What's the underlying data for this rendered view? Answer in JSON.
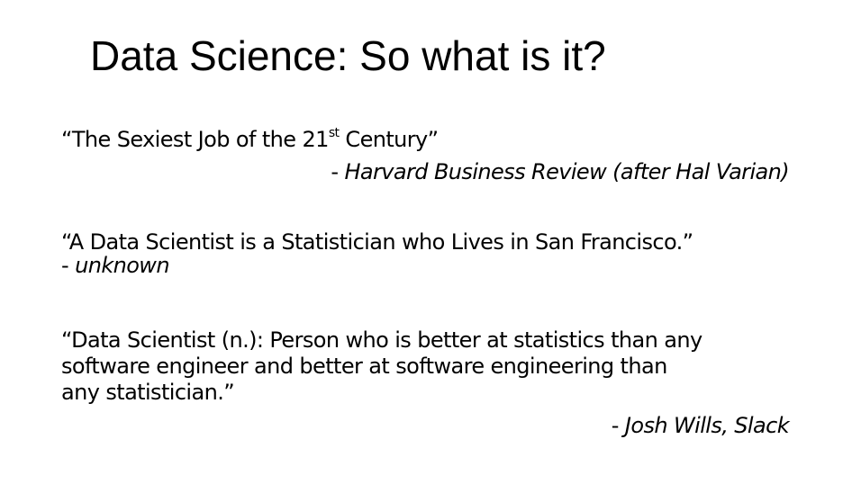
{
  "slide": {
    "title": "Data Science: So what is it?",
    "quotes": [
      {
        "text_before_sup": "“The Sexiest Job of the 21",
        "sup": "st",
        "text_after_sup": " Century”",
        "attribution_prefix": "- ",
        "attribution": "Harvard Business Review (after Hal Varian)"
      },
      {
        "text": "“A Data Scientist is a Statistician who Lives in San Francisco.”",
        "attribution_prefix": "- ",
        "attribution": "unknown"
      },
      {
        "lines": [
          "“Data Scientist (n.): Person who is better at statistics than any",
          "software engineer and better at software engineering than",
          "any statistician.”"
        ],
        "attribution_prefix": "- ",
        "attribution": "Josh Wills, Slack"
      }
    ]
  }
}
